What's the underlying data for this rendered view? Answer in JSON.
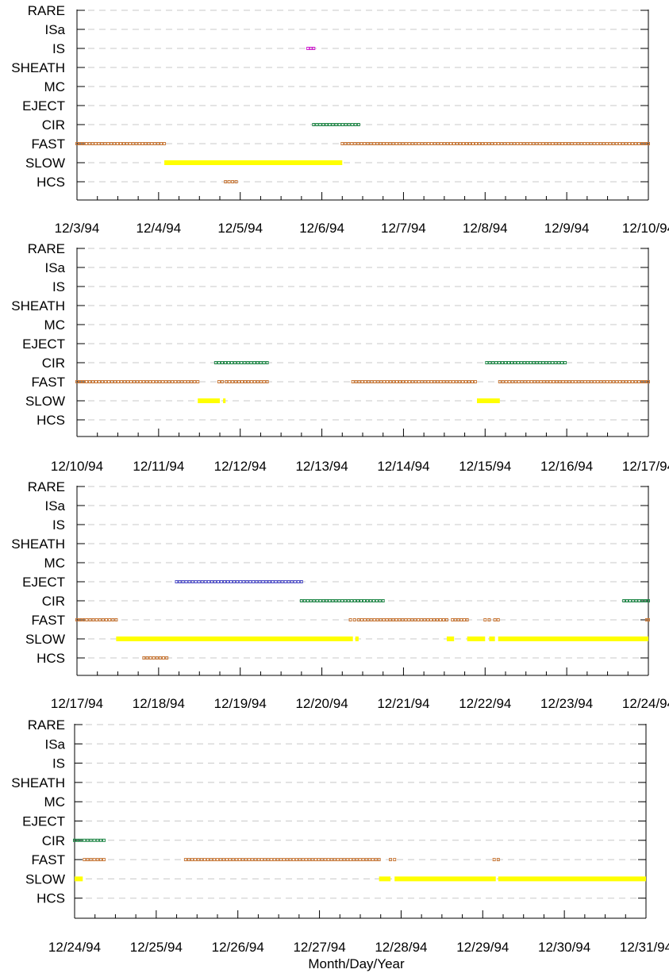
{
  "figure": {
    "xlabel": "Month/Day/Year",
    "categories": [
      "RARE",
      "ISa",
      "IS",
      "SHEATH",
      "MC",
      "EJECT",
      "CIR",
      "FAST",
      "SLOW",
      "HCS"
    ],
    "colors": {
      "FAST": "#c87838",
      "SLOW": "#ffff00",
      "CIR": "#208848",
      "IS": "#d020d0",
      "HCS": "#c87838",
      "EJECT": "#5050c8",
      "grid": "#c8c8c8",
      "axis": "#000000"
    }
  },
  "chart_data": [
    {
      "type": "timeline",
      "xlim": [
        "12/3/94",
        "12/10/94"
      ],
      "xticks": [
        "12/3/94",
        "12/4/94",
        "12/5/94",
        "12/6/94",
        "12/7/94",
        "12/8/94",
        "12/9/94",
        "12/10/94"
      ],
      "intervals": [
        {
          "category": "IS",
          "start": 2.83,
          "end": 2.9
        },
        {
          "category": "CIR",
          "start": 2.9,
          "end": 3.45
        },
        {
          "category": "FAST",
          "start": 0.0,
          "end": 1.07
        },
        {
          "category": "FAST",
          "start": 3.25,
          "end": 7.0
        },
        {
          "category": "SLOW",
          "start": 1.07,
          "end": 3.25
        },
        {
          "category": "HCS",
          "start": 1.82,
          "end": 1.95
        }
      ]
    },
    {
      "type": "timeline",
      "xlim": [
        "12/10/94",
        "12/17/94"
      ],
      "xticks": [
        "12/10/94",
        "12/11/94",
        "12/12/94",
        "12/13/94",
        "12/14/94",
        "12/15/94",
        "12/16/94",
        "12/17/94"
      ],
      "intervals": [
        {
          "category": "CIR",
          "start": 1.7,
          "end": 2.33
        },
        {
          "category": "CIR",
          "start": 5.02,
          "end": 5.98
        },
        {
          "category": "FAST",
          "start": 0.0,
          "end": 1.48
        },
        {
          "category": "FAST",
          "start": 1.74,
          "end": 1.78
        },
        {
          "category": "FAST",
          "start": 1.83,
          "end": 2.33
        },
        {
          "category": "FAST",
          "start": 3.38,
          "end": 4.88
        },
        {
          "category": "FAST",
          "start": 5.18,
          "end": 7.0
        },
        {
          "category": "SLOW",
          "start": 1.48,
          "end": 1.75
        },
        {
          "category": "SLOW",
          "start": 1.79,
          "end": 1.82
        },
        {
          "category": "SLOW",
          "start": 4.9,
          "end": 5.18
        }
      ]
    },
    {
      "type": "timeline",
      "xlim": [
        "12/17/94",
        "12/24/94"
      ],
      "xticks": [
        "12/17/94",
        "12/18/94",
        "12/19/94",
        "12/20/94",
        "12/21/94",
        "12/22/94",
        "12/23/94",
        "12/24/94"
      ],
      "intervals": [
        {
          "category": "EJECT",
          "start": 1.22,
          "end": 2.75
        },
        {
          "category": "CIR",
          "start": 2.75,
          "end": 3.75
        },
        {
          "category": "CIR",
          "start": 6.7,
          "end": 7.0
        },
        {
          "category": "FAST",
          "start": 0.0,
          "end": 0.48
        },
        {
          "category": "FAST",
          "start": 3.35,
          "end": 3.4
        },
        {
          "category": "FAST",
          "start": 3.45,
          "end": 4.53
        },
        {
          "category": "FAST",
          "start": 4.6,
          "end": 4.78
        },
        {
          "category": "FAST",
          "start": 5.0,
          "end": 5.05
        },
        {
          "category": "FAST",
          "start": 5.12,
          "end": 5.16
        },
        {
          "category": "FAST",
          "start": 6.98,
          "end": 7.0
        },
        {
          "category": "SLOW",
          "start": 0.48,
          "end": 3.38
        },
        {
          "category": "SLOW",
          "start": 3.41,
          "end": 3.45
        },
        {
          "category": "SLOW",
          "start": 4.53,
          "end": 4.62
        },
        {
          "category": "SLOW",
          "start": 4.78,
          "end": 5.0
        },
        {
          "category": "SLOW",
          "start": 5.05,
          "end": 5.12
        },
        {
          "category": "SLOW",
          "start": 5.16,
          "end": 7.0
        },
        {
          "category": "HCS",
          "start": 0.82,
          "end": 1.1
        }
      ]
    },
    {
      "type": "timeline",
      "xlim": [
        "12/24/94",
        "12/31/94"
      ],
      "xticks": [
        "12/24/94",
        "12/25/94",
        "12/26/94",
        "12/27/94",
        "12/28/94",
        "12/29/94",
        "12/30/94",
        "12/31/94"
      ],
      "intervals": [
        {
          "category": "CIR",
          "start": 0.0,
          "end": 0.36
        },
        {
          "category": "FAST",
          "start": 0.12,
          "end": 0.36
        },
        {
          "category": "FAST",
          "start": 1.36,
          "end": 3.73
        },
        {
          "category": "FAST",
          "start": 3.87,
          "end": 3.92
        },
        {
          "category": "FAST",
          "start": 5.14,
          "end": 5.19
        },
        {
          "category": "SLOW",
          "start": 0.0,
          "end": 0.1
        },
        {
          "category": "SLOW",
          "start": 3.73,
          "end": 3.87
        },
        {
          "category": "SLOW",
          "start": 3.92,
          "end": 5.16
        },
        {
          "category": "SLOW",
          "start": 5.19,
          "end": 7.0
        }
      ]
    }
  ]
}
